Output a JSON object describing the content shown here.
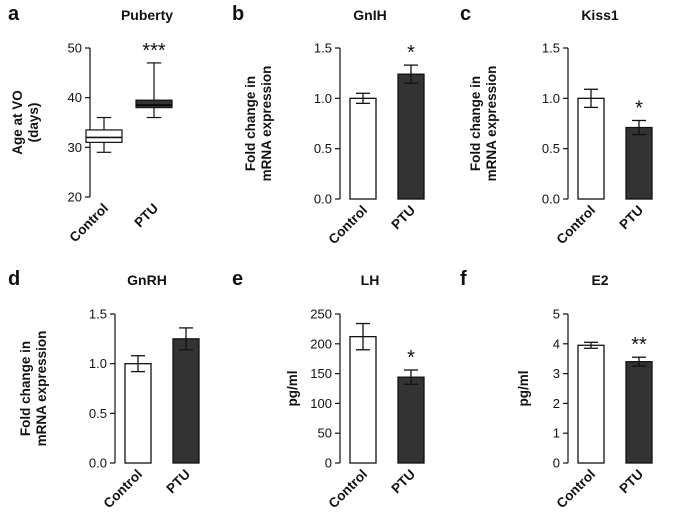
{
  "chart_data": [
    {
      "panel": "a",
      "type": "box",
      "title": "Puberty",
      "ylabel": [
        "Age at VO",
        "(days)"
      ],
      "ylim": [
        20,
        50
      ],
      "yticks": [
        20,
        30,
        40,
        50
      ],
      "categories": [
        "Control",
        "PTU"
      ],
      "boxes": [
        {
          "min": 29,
          "q1": 31,
          "median": 32,
          "q3": 33.5,
          "max": 36
        },
        {
          "min": 36,
          "q1": 38,
          "median": 38.5,
          "q3": 39.5,
          "max": 47
        }
      ],
      "fills": [
        "#ffffff",
        "#333333"
      ],
      "significance": [
        "",
        "***"
      ]
    },
    {
      "panel": "b",
      "type": "bar",
      "title": "GnIH",
      "ylabel": [
        "Fold change in",
        "mRNA expression"
      ],
      "ylim": [
        0,
        1.5
      ],
      "yticks": [
        "0.0",
        "0.5",
        "1.0",
        "1.5"
      ],
      "categories": [
        "Control",
        "PTU"
      ],
      "values": [
        1.0,
        1.24
      ],
      "errors": [
        0.05,
        0.09
      ],
      "fills": [
        "#ffffff",
        "#333333"
      ],
      "significance": [
        "",
        "*"
      ]
    },
    {
      "panel": "c",
      "type": "bar",
      "title": "Kiss1",
      "ylabel": [
        "Fold change in",
        "mRNA expression"
      ],
      "ylim": [
        0,
        1.5
      ],
      "yticks": [
        "0.0",
        "0.5",
        "1.0",
        "1.5"
      ],
      "categories": [
        "Control",
        "PTU"
      ],
      "values": [
        1.0,
        0.71
      ],
      "errors": [
        0.09,
        0.07
      ],
      "fills": [
        "#ffffff",
        "#333333"
      ],
      "significance": [
        "",
        "*"
      ]
    },
    {
      "panel": "d",
      "type": "bar",
      "title": "GnRH",
      "ylabel": [
        "Fold change in",
        "mRNA expression"
      ],
      "ylim": [
        0,
        1.5
      ],
      "yticks": [
        "0.0",
        "0.5",
        "1.0",
        "1.5"
      ],
      "categories": [
        "Control",
        "PTU"
      ],
      "values": [
        1.0,
        1.25
      ],
      "errors": [
        0.08,
        0.11
      ],
      "fills": [
        "#ffffff",
        "#333333"
      ],
      "significance": [
        "",
        ""
      ]
    },
    {
      "panel": "e",
      "type": "bar",
      "title": "LH",
      "ylabel": [
        "pg/ml"
      ],
      "ylim": [
        0,
        250
      ],
      "yticks": [
        "0",
        "50",
        "100",
        "150",
        "200",
        "250"
      ],
      "categories": [
        "Control",
        "PTU"
      ],
      "values": [
        212,
        144
      ],
      "errors": [
        22,
        12
      ],
      "fills": [
        "#ffffff",
        "#333333"
      ],
      "significance": [
        "",
        "*"
      ]
    },
    {
      "panel": "f",
      "type": "bar",
      "title": "E2",
      "ylabel": [
        "pg/ml"
      ],
      "ylim": [
        0,
        5
      ],
      "yticks": [
        "0",
        "1",
        "2",
        "3",
        "4",
        "5"
      ],
      "categories": [
        "Control",
        "PTU"
      ],
      "values": [
        3.95,
        3.4
      ],
      "errors": [
        0.1,
        0.15
      ],
      "fills": [
        "#ffffff",
        "#333333"
      ],
      "significance": [
        "",
        "**"
      ]
    }
  ]
}
